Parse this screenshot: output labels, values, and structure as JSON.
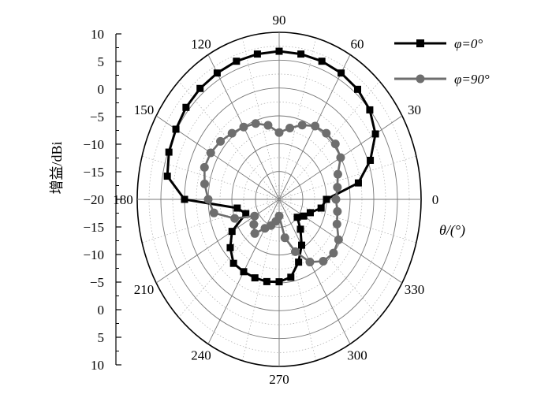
{
  "chart_data": {
    "type": "polar-line",
    "radial_axis": {
      "label": "增益/dBi",
      "min": -20,
      "max": 10,
      "step": 5,
      "tick_labels": [
        "10",
        "5",
        "0",
        "−5",
        "−10",
        "−15",
        "−20",
        "−15",
        "−10",
        "−5",
        "0",
        "5",
        "10"
      ]
    },
    "angular_axis": {
      "label": "θ/(°)",
      "ticks": [
        0,
        30,
        60,
        90,
        120,
        150,
        180,
        210,
        240,
        270,
        300,
        330
      ],
      "tick_labels": [
        "0",
        "30",
        "60",
        "90",
        "120",
        "150",
        "180",
        "210",
        "240",
        "270",
        "300",
        "330"
      ],
      "minor_step": 15
    },
    "grid": true,
    "legend_position": "top-right",
    "series": [
      {
        "name": "φ=0°",
        "color": "#000000",
        "marker": "square",
        "theta": [
          0,
          10,
          20,
          30,
          40,
          50,
          60,
          70,
          80,
          90,
          100,
          110,
          120,
          130,
          140,
          150,
          160,
          170,
          180,
          190,
          200,
          210,
          220,
          230,
          240,
          250,
          260,
          270,
          280,
          290,
          300,
          310,
          320,
          330,
          340,
          350
        ],
        "gain": [
          -10,
          -3,
          0.5,
          3.5,
          5,
          5.8,
          6.2,
          6.4,
          6.5,
          6.6,
          6.5,
          6.4,
          6.2,
          6,
          5.7,
          5.2,
          4.8,
          4,
          0,
          -11,
          -12.5,
          -8.5,
          -6.5,
          -5,
          -5,
          -5,
          -5,
          -5.2,
          -5.8,
          -8,
          -10.5,
          -13,
          -15,
          -14,
          -13,
          -11
        ]
      },
      {
        "name": "φ=90°",
        "color": "#6e6e6e",
        "marker": "circle",
        "theta": [
          0,
          10,
          20,
          30,
          40,
          50,
          60,
          70,
          80,
          90,
          100,
          110,
          120,
          130,
          140,
          150,
          160,
          170,
          180,
          190,
          200,
          210,
          220,
          230,
          240,
          250,
          260,
          270,
          280,
          290,
          300,
          310,
          320,
          330,
          340,
          350
        ],
        "gain": [
          -8,
          -7.5,
          -6.8,
          -5,
          -4.5,
          -4.5,
          -4.8,
          -5.8,
          -7,
          -8,
          -6.5,
          -5.5,
          -5,
          -4.5,
          -3.8,
          -3.3,
          -3.2,
          -4,
          -5,
          -6,
          -10,
          -14,
          -13,
          -12,
          -14,
          -15,
          -16,
          -17,
          -13,
          -10,
          -7,
          -5.5,
          -5,
          -5.5,
          -7,
          -7.5
        ]
      }
    ]
  }
}
